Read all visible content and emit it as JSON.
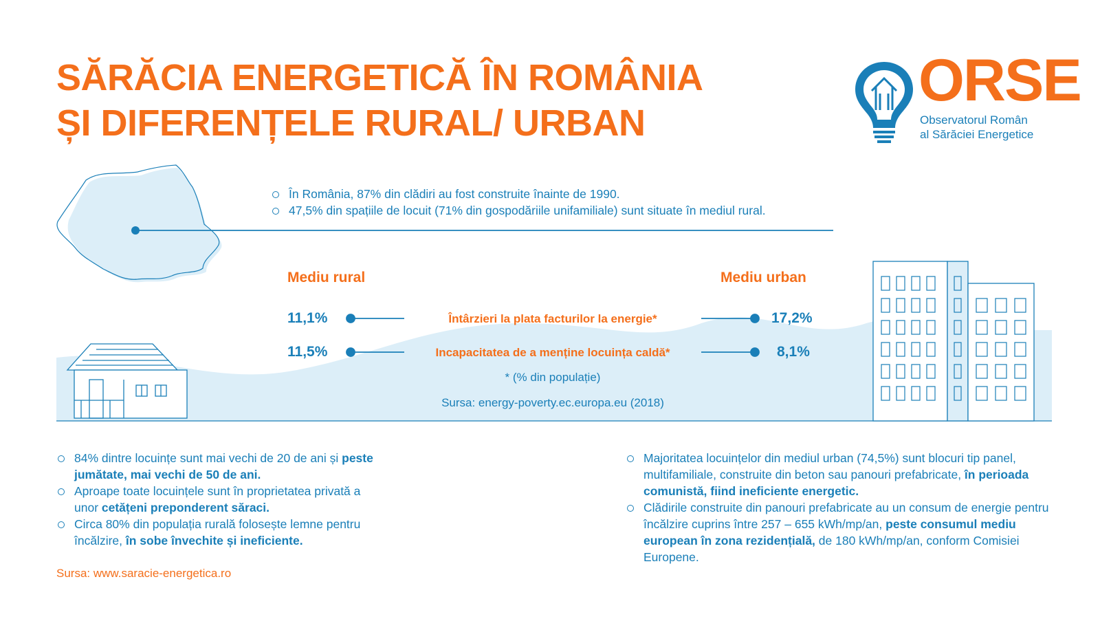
{
  "title": {
    "line1": "SĂRĂCIA ENERGETICĂ ÎN ROMÂNIA",
    "line2": "ȘI DIFERENȚELE RURAL/ URBAN"
  },
  "logo": {
    "name": "ORSE",
    "subtitle_line1": "Observatorul Român",
    "subtitle_line2": "al Sărăciei Energetice",
    "icon": "lightbulb-house-icon"
  },
  "top_facts": [
    "În România, 87% din clădiri au fost construite înainte de 1990.",
    "47,5% din spațiile de locuit (71% din gospodăriile unifamiliale) sunt situate în mediul rural."
  ],
  "comparison": {
    "rural_label": "Mediu rural",
    "urban_label": "Mediu urban",
    "rows": [
      {
        "label": "Întârzieri la plata facturilor la energie*",
        "rural": "11,1%",
        "urban": "17,2%"
      },
      {
        "label": "Incapacitatea de a menține locuința caldă*",
        "rural": "11,5%",
        "urban": "8,1%"
      }
    ],
    "footnote": "* (% din populație)",
    "source": "Sursa: energy-poverty.ec.europa.eu (2018)"
  },
  "rural_facts": [
    {
      "plain": "84% dintre locuințe sunt mai vechi de 20 de ani și ",
      "bold": "peste jumătate, mai vechi de 50 de ani.",
      "after": ""
    },
    {
      "plain": "Aproape toate locuințele sunt în proprietatea privată a unor ",
      "bold": "cetățeni preponderent săraci.",
      "after": ""
    },
    {
      "plain": "Circa 80% din populația rurală folosește lemne pentru încălzire, ",
      "bold": "în sobe învechite și ineficiente.",
      "after": ""
    }
  ],
  "urban_facts": [
    {
      "plain": "Majoritatea locuințelor din mediul urban (74,5%) sunt blocuri tip panel, multifamiliale, construite din beton sau panouri prefabricate, ",
      "bold": "în perioada comunistă, fiind ineficiente energetic.",
      "after": ""
    },
    {
      "plain": "Clădirile construite din panouri prefabricate au un consum de energie pentru încălzire cuprins între 257 – 655 kWh/mp/an, ",
      "bold": "peste consumul mediu european în zona rezidențială,",
      "after": " de 180 kWh/mp/an, conform Comisiei Europene."
    }
  ],
  "footer_source": "Sursa: www.saracie-energetica.ro",
  "colors": {
    "orange": "#f46f1b",
    "blue": "#1a7fb8",
    "light_blue": "#dceef8"
  }
}
